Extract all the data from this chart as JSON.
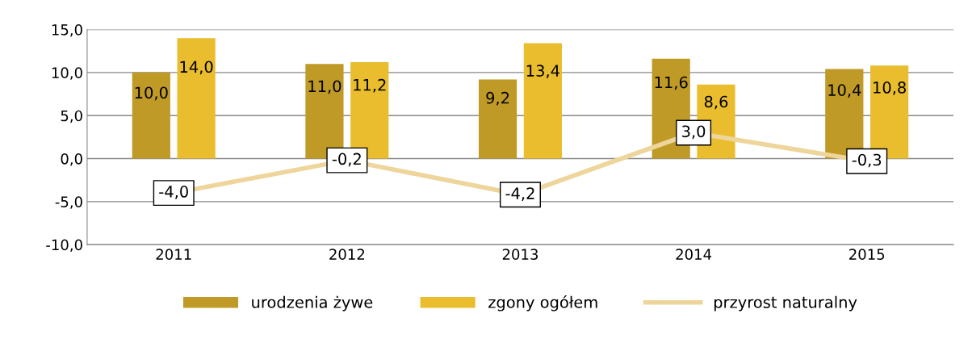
{
  "chart_data": {
    "type": "bar",
    "categories": [
      "2011",
      "2012",
      "2013",
      "2014",
      "2015"
    ],
    "series": [
      {
        "name": "urodzenia żywe",
        "color": "#c09a26",
        "values": [
          10.0,
          11.0,
          9.2,
          11.6,
          10.4
        ],
        "value_labels": [
          "10,0",
          "11,0",
          "9,2",
          "11,6",
          "10,4"
        ]
      },
      {
        "name": "zgony ogółem",
        "color": "#e9bd2d",
        "values": [
          14.0,
          11.2,
          13.4,
          8.6,
          10.8
        ],
        "value_labels": [
          "14,0",
          "11,2",
          "13,4",
          "8,6",
          "10,8"
        ]
      },
      {
        "name": "przyrost naturalny",
        "type": "line",
        "color": "#eed59b",
        "values": [
          -4.0,
          -0.2,
          -4.2,
          3.0,
          -0.3
        ],
        "value_labels": [
          "-4,0",
          "-0,2",
          "-4,2",
          "3,0",
          "-0,3"
        ]
      }
    ],
    "ylim": [
      -10,
      15
    ],
    "yticks": [
      {
        "value": -10,
        "label": "-10,0"
      },
      {
        "value": -5,
        "label": "-5,0"
      },
      {
        "value": 0,
        "label": "0,0"
      },
      {
        "value": 5,
        "label": "5,0"
      },
      {
        "value": 10,
        "label": "10,0"
      },
      {
        "value": 15,
        "label": "15,0"
      }
    ],
    "grid": "y",
    "legend": "bottom"
  }
}
